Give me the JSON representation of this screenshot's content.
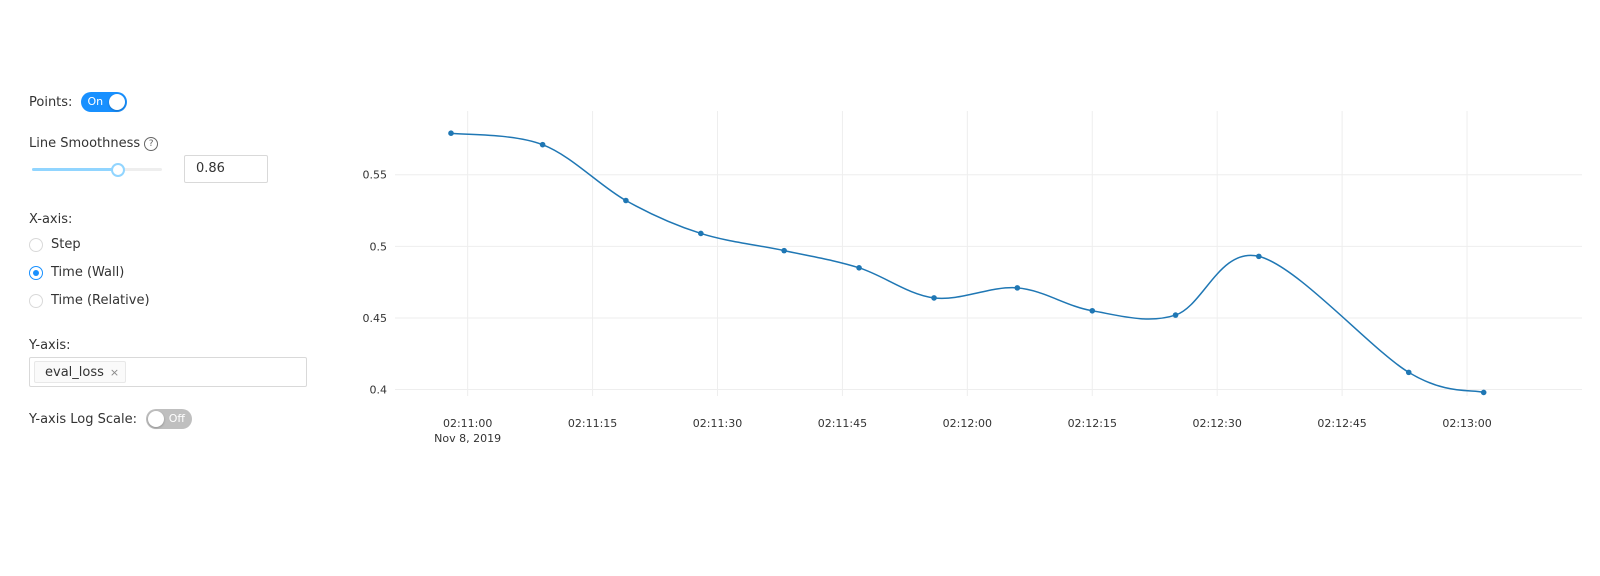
{
  "controls": {
    "points_label": "Points:",
    "points_state": "On",
    "smoothness_label": "Line Smoothness",
    "smoothness_help_icon": "question-circle-icon",
    "smoothness_value": "0.86",
    "smoothness_fraction": 0.86,
    "xaxis_label": "X-axis:",
    "xaxis_options": [
      "Step",
      "Time (Wall)",
      "Time (Relative)"
    ],
    "xaxis_selected": "Time (Wall)",
    "yaxis_label": "Y-axis:",
    "yaxis_tag": "eval_loss",
    "yaxis_tag_close": "×",
    "log_scale_label": "Y-axis Log Scale:",
    "log_scale_state": "Off",
    "accent_color": "#1890ff"
  },
  "chart_data": {
    "type": "line",
    "title": "",
    "xlabel": "",
    "ylabel": "",
    "x_ticks": [
      "02:11:00",
      "02:11:15",
      "02:11:30",
      "02:11:45",
      "02:12:00",
      "02:12:15",
      "02:12:30",
      "02:12:45",
      "02:13:00"
    ],
    "x_tick_date": "Nov 8, 2019",
    "x_range": [
      "02:10:58",
      "02:13:06"
    ],
    "y_ticks": [
      "0.4",
      "0.45",
      "0.5",
      "0.55"
    ],
    "ylim": [
      0.3955,
      0.5945
    ],
    "grid": true,
    "legend": "none",
    "series": [
      {
        "color": "#1f77b4",
        "x": [
          "02:10:58",
          "02:11:09",
          "02:11:19",
          "02:11:28",
          "02:11:38",
          "02:11:47",
          "02:11:56",
          "02:12:06",
          "02:12:15",
          "02:12:25",
          "02:12:35",
          "02:12:53",
          "02:13:02"
        ],
        "y": [
          0.579,
          0.571,
          0.532,
          0.509,
          0.497,
          0.485,
          0.464,
          0.471,
          0.455,
          0.452,
          0.493,
          0.412,
          0.398
        ]
      }
    ]
  }
}
